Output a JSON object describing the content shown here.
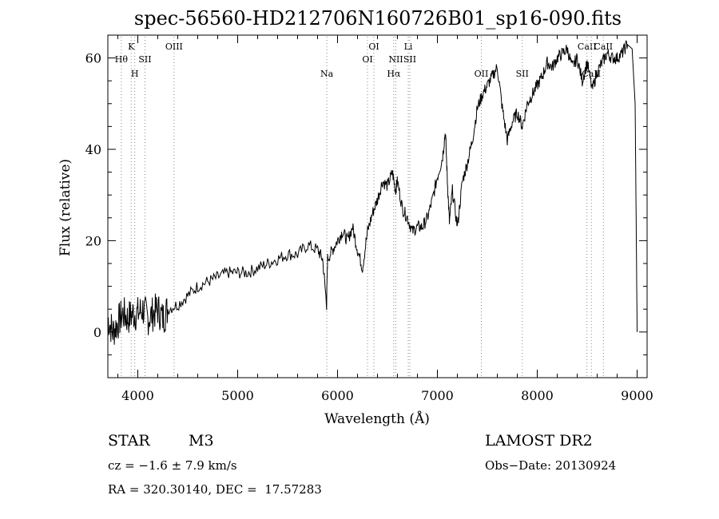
{
  "chart_data": {
    "type": "line",
    "title": "spec-56560-HD212706N160726B01_sp16-090.fits",
    "xlabel": "Wavelength (Å)",
    "ylabel": "Flux (relative)",
    "xlim": [
      3700,
      9100
    ],
    "ylim": [
      -10,
      65
    ],
    "xticks": [
      "4000",
      "5000",
      "6000",
      "7000",
      "8000",
      "9000"
    ],
    "yticks": [
      "0",
      "20",
      "40",
      "60"
    ],
    "grid": false,
    "series": [
      {
        "x": [
          3700,
          3750,
          3800,
          3850,
          3900,
          3950,
          4000,
          4050,
          4100,
          4150,
          4200,
          4250,
          4300,
          4400,
          4500,
          4600,
          4700,
          4800,
          4900,
          5000,
          5100,
          5200,
          5300,
          5400,
          5500,
          5600,
          5700,
          5800,
          5850,
          5890,
          5900,
          5950,
          6000,
          6050,
          6100,
          6150,
          6200,
          6250,
          6300,
          6350,
          6400,
          6450,
          6500,
          6550,
          6580,
          6600,
          6650,
          6700,
          6750,
          6800,
          6850,
          6900,
          6950,
          7000,
          7050,
          7080,
          7100,
          7120,
          7150,
          7200,
          7250,
          7300,
          7350,
          7400,
          7450,
          7500,
          7550,
          7600,
          7650,
          7700,
          7750,
          7800,
          7850,
          7900,
          7950,
          8000,
          8050,
          8100,
          8150,
          8200,
          8250,
          8300,
          8350,
          8400,
          8450,
          8500,
          8550,
          8600,
          8650,
          8700,
          8750,
          8800,
          8850,
          8900,
          8950,
          8980,
          9000
        ],
        "y": [
          3,
          0,
          2,
          4,
          3,
          4,
          4,
          5,
          3,
          4,
          5,
          3,
          5,
          6,
          8,
          10,
          11,
          12,
          13,
          13,
          13,
          14,
          15,
          16,
          17,
          17,
          19,
          18,
          16,
          6,
          16,
          18,
          20,
          22,
          20,
          23,
          18,
          14,
          22,
          26,
          29,
          33,
          32,
          35,
          31,
          33,
          27,
          25,
          22,
          23,
          23,
          25,
          29,
          34,
          38,
          44,
          33,
          24,
          31,
          23,
          33,
          37,
          42,
          49,
          52,
          54,
          56,
          58,
          49,
          42,
          46,
          48,
          45,
          50,
          52,
          54,
          56,
          59,
          58,
          60,
          61,
          62,
          58,
          60,
          55,
          59,
          53,
          57,
          59,
          61,
          60,
          60,
          61,
          63,
          62,
          50,
          0
        ]
      }
    ],
    "lines": [
      {
        "wl": 3835,
        "label": "Hθ",
        "row": 1
      },
      {
        "wl": 3934,
        "label": "K",
        "row": 0
      },
      {
        "wl": 3969,
        "label": "H",
        "row": 2
      },
      {
        "wl": 4072,
        "label": "SII",
        "row": 1
      },
      {
        "wl": 4363,
        "label": "OIII",
        "row": 0
      },
      {
        "wl": 5893,
        "label": "Na",
        "row": 2
      },
      {
        "wl": 6300,
        "label": "OI",
        "row": 1
      },
      {
        "wl": 6364,
        "label": "OI",
        "row": 0
      },
      {
        "wl": 6563,
        "label": "Hα",
        "row": 2
      },
      {
        "wl": 6584,
        "label": "NII",
        "row": 1
      },
      {
        "wl": 6708,
        "label": "Li",
        "row": 0
      },
      {
        "wl": 6724,
        "label": "SII",
        "row": 1
      },
      {
        "wl": 7440,
        "label": "OII",
        "row": 2
      },
      {
        "wl": 7850,
        "label": "SII",
        "row": 2
      },
      {
        "wl": 8498,
        "label": "CaII",
        "row": 0
      },
      {
        "wl": 8542,
        "label": "CaII",
        "row": 2
      },
      {
        "wl": 8662,
        "label": "CaII",
        "row": 0
      }
    ]
  },
  "info": {
    "class_label": "STAR",
    "subclass": "M3",
    "cz": "cz = −1.6 ± 7.9 km/s",
    "radec": "RA = 320.30140, DEC =  17.57283",
    "survey": "LAMOST DR2",
    "obs_date": "Obs−Date: 20130924"
  },
  "colors": {
    "line": "#000000",
    "marker": "#888888"
  }
}
